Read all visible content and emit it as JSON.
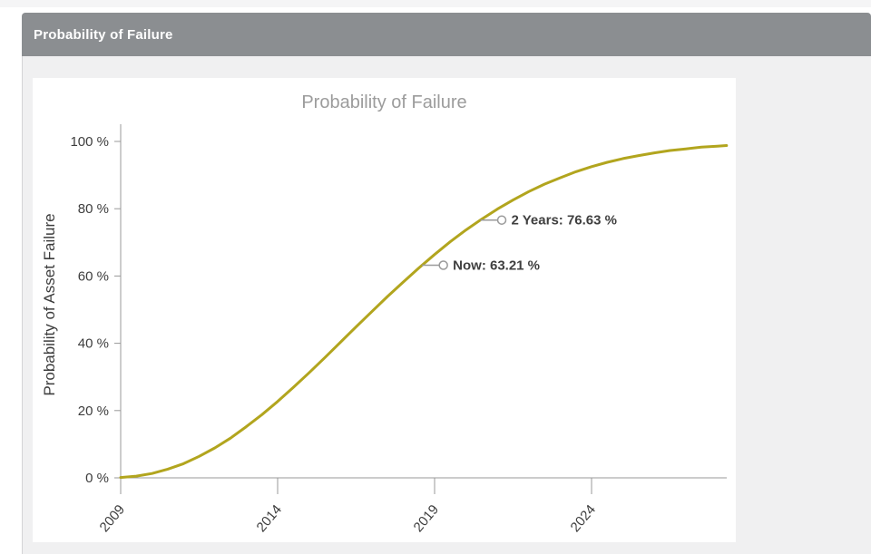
{
  "widget": {
    "header_title": "Probability of Failure"
  },
  "chart_data": {
    "type": "line",
    "title": "Probability of Failure",
    "xlabel": "",
    "ylabel": "Probability of Asset Failure",
    "grid": false,
    "legend": "none",
    "xlim": [
      2009,
      2028.3
    ],
    "ylim": [
      0,
      100
    ],
    "x_ticks": [
      {
        "value": 2009,
        "label": "2009"
      },
      {
        "value": 2014,
        "label": "2014"
      },
      {
        "value": 2019,
        "label": "2019"
      },
      {
        "value": 2024,
        "label": "2024"
      }
    ],
    "y_ticks": [
      {
        "value": 0,
        "label": "0 %"
      },
      {
        "value": 20,
        "label": "20 %"
      },
      {
        "value": 40,
        "label": "40 %"
      },
      {
        "value": 60,
        "label": "60 %"
      },
      {
        "value": 80,
        "label": "80 %"
      },
      {
        "value": 100,
        "label": "100 %"
      }
    ],
    "series": [
      {
        "name": "Probability of Asset Failure",
        "color": "#b2a51e",
        "x": [
          2009,
          2009.5,
          2010,
          2010.5,
          2011,
          2011.5,
          2012,
          2012.5,
          2013,
          2013.5,
          2014,
          2014.5,
          2015,
          2015.5,
          2016,
          2016.5,
          2017,
          2017.5,
          2018,
          2018.5,
          2019,
          2019.5,
          2020,
          2020.5,
          2021,
          2021.5,
          2022,
          2022.5,
          2023,
          2023.5,
          2024,
          2024.5,
          2025,
          2025.5,
          2026,
          2026.5,
          2027,
          2027.5,
          2028,
          2028.3
        ],
        "values": [
          0.1,
          0.5,
          1.3,
          2.6,
          4.2,
          6.4,
          8.9,
          11.8,
          15.2,
          18.8,
          22.7,
          26.9,
          31.2,
          35.7,
          40.3,
          44.9,
          49.4,
          53.9,
          58.2,
          62.4,
          66.4,
          70.2,
          73.7,
          76.9,
          79.9,
          82.6,
          85.1,
          87.3,
          89.2,
          91.0,
          92.5,
          93.8,
          94.9,
          95.8,
          96.6,
          97.3,
          97.8,
          98.3,
          98.6,
          98.8
        ]
      }
    ],
    "annotations": [
      {
        "label": "Now: 63.21 %",
        "year": 2018.6,
        "value": 63.21
      },
      {
        "label": "2 Years: 76.63 %",
        "year": 2020.46,
        "value": 76.63
      }
    ]
  }
}
